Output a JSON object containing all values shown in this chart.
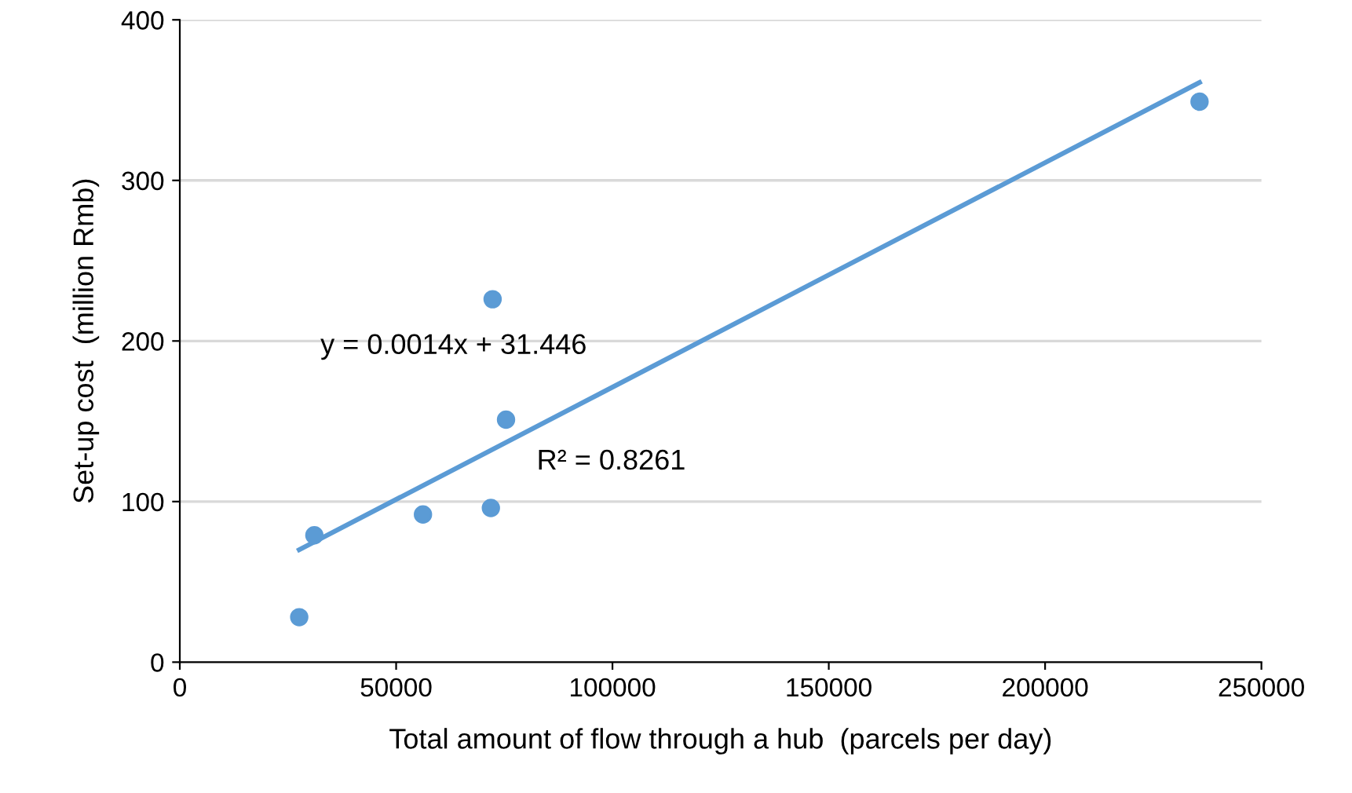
{
  "chart_data": {
    "type": "scatter",
    "xlabel": "Total amount of flow through a hub  (parcels per day)",
    "ylabel": "Set-up cost  (million Rmb)",
    "xlim": [
      0,
      250000
    ],
    "ylim": [
      0,
      400
    ],
    "xticks": [
      0,
      50000,
      100000,
      150000,
      200000,
      250000
    ],
    "yticks": [
      0,
      100,
      200,
      300,
      400
    ],
    "grid": "y",
    "marker": "circle",
    "annotations": [
      "y = 0.0014x + 31.446",
      "R² = 0.8261"
    ],
    "series": [
      {
        "color": "#5b9bd5",
        "x": [
          27600,
          31100,
          56200,
          71900,
          72300,
          75400,
          235700
        ],
        "values": [
          28,
          79,
          92,
          96,
          226,
          151,
          349
        ]
      },
      {
        "type": "line",
        "color": "#5b9bd5",
        "x": [
          27600,
          235700
        ],
        "values": [
          70,
          361
        ],
        "marker": "none",
        "line_style": "solid"
      }
    ]
  }
}
